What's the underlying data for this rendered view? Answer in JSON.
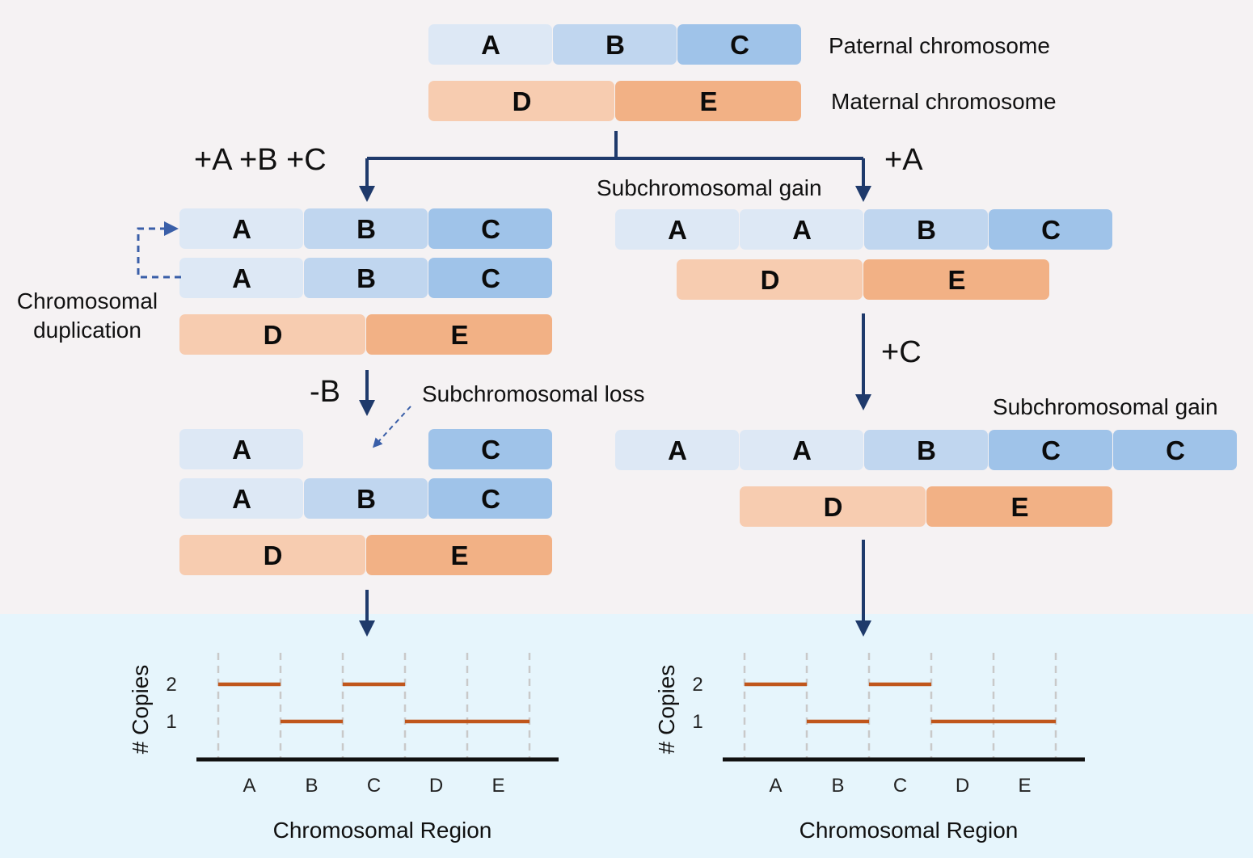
{
  "colors": {
    "A": "#dde8f5",
    "B": "#c0d6ef",
    "C": "#9fc3e9",
    "D": "#f7ccb0",
    "E": "#f2b185",
    "arrow": "#1f3a6b",
    "dash_arrow": "#3a5fa8",
    "step": "#c0561c",
    "bottom_bg": "#e6f5fc"
  },
  "labels": {
    "paternal": "Paternal chromosome",
    "maternal": "Maternal chromosome",
    "left_op": "+A +B +C",
    "right_op": "+A",
    "right_gain1": "Subchromosomal gain",
    "dup_line1": "Chromosomal",
    "dup_line2": "duplication",
    "loss_op": "-B",
    "loss_label": "Subchromosomal loss",
    "c_op": "+C",
    "right_gain2": "Subchromosomal gain"
  },
  "chromosomes": {
    "top_paternal": [
      "A",
      "B",
      "C"
    ],
    "top_maternal": [
      "D",
      "E"
    ],
    "left1_pat1": [
      "A",
      "B",
      "C"
    ],
    "left1_pat2": [
      "A",
      "B",
      "C"
    ],
    "left1_mat": [
      "D",
      "E"
    ],
    "right1_pat": [
      "A",
      "A",
      "B",
      "C"
    ],
    "right1_mat": [
      "D",
      "E"
    ],
    "left2_pat1": [
      "A",
      "",
      "C"
    ],
    "left2_pat2": [
      "A",
      "B",
      "C"
    ],
    "left2_mat": [
      "D",
      "E"
    ],
    "right2_pat": [
      "A",
      "A",
      "B",
      "C",
      "C"
    ],
    "right2_mat": [
      "D",
      "E"
    ]
  },
  "chart_data": [
    {
      "type": "line",
      "categories": [
        "A",
        "B",
        "C",
        "D",
        "E"
      ],
      "values": [
        2,
        1,
        2,
        1,
        1
      ],
      "xlabel": "Chromosomal Region",
      "ylabel": "# Copies",
      "yticks": [
        1,
        2
      ],
      "ylim": [
        0,
        2
      ]
    },
    {
      "type": "line",
      "categories": [
        "A",
        "B",
        "C",
        "D",
        "E"
      ],
      "values": [
        2,
        1,
        2,
        1,
        1
      ],
      "xlabel": "Chromosomal Region",
      "ylabel": "# Copies",
      "yticks": [
        1,
        2
      ],
      "ylim": [
        0,
        2
      ]
    }
  ]
}
